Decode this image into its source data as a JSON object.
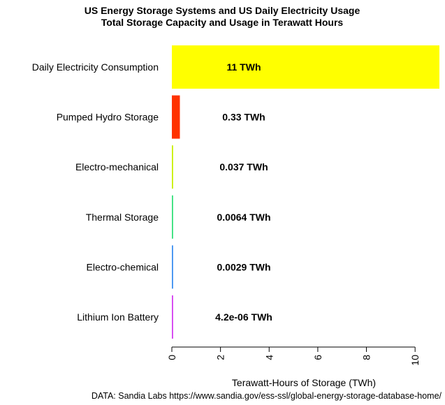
{
  "chart_data": {
    "type": "bar",
    "orientation": "horizontal",
    "title": "US Energy Storage Systems and US Daily Electricity Usage",
    "subtitle": "Total Storage Capacity and Usage in Terawatt Hours",
    "xlabel": "Terawatt-Hours of Storage (TWh)",
    "ylabel": "",
    "xlim": [
      0,
      11
    ],
    "xticks": [
      0,
      2,
      4,
      6,
      8,
      10
    ],
    "xtick_labels": [
      "0",
      "2",
      "4",
      "6",
      "8",
      "10"
    ],
    "tick_label_rotation": "vertical",
    "grid": false,
    "legend": "none",
    "categories": [
      "Daily Electricity Consumption",
      "Pumped Hydro Storage",
      "Electro-mechanical",
      "Thermal Storage",
      "Electro-chemical",
      "Lithium Ion Battery"
    ],
    "values": [
      11,
      0.33,
      0.037,
      0.0064,
      0.0029,
      4.2e-06
    ],
    "data_labels": [
      "11 TWh",
      "0.33 TWh",
      "0.037 TWh",
      "0.0064 TWh",
      "0.0029 TWh",
      "4.2e-06 TWh"
    ],
    "colors": [
      "#ffff00",
      "#ff3300",
      "#c8ef00",
      "#33e07a",
      "#3b8ff0",
      "#d33cf0"
    ],
    "source": "DATA: Sandia Labs https://www.sandia.gov/ess-ssl/global-energy-storage-database-home/"
  }
}
